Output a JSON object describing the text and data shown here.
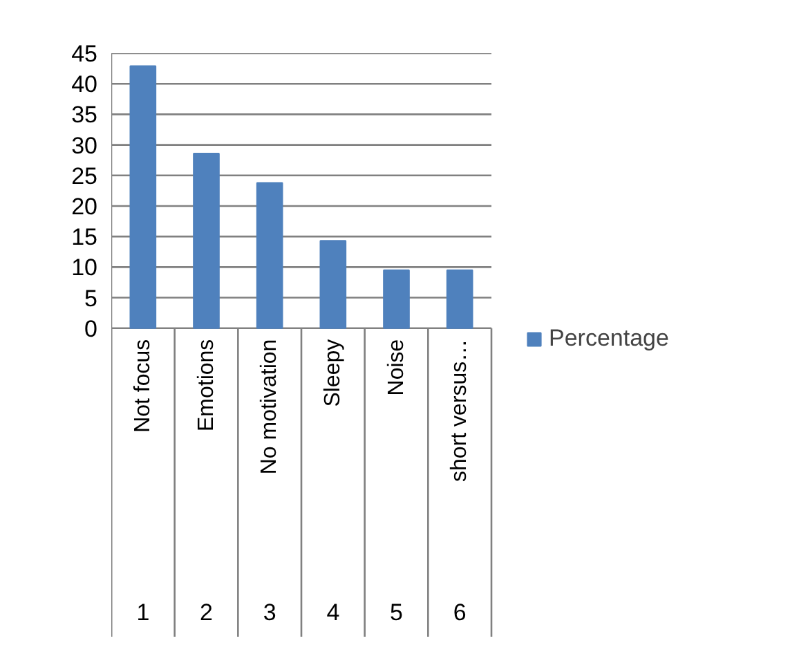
{
  "chart_data": {
    "type": "bar",
    "categories": [
      "Not focus",
      "Emotions",
      "No motivation",
      "Sleepy",
      "Noise",
      "short versus…"
    ],
    "series": [
      {
        "name": "Percentage",
        "color": "#4f81bd",
        "values": [
          42.9,
          28.6,
          23.8,
          14.3,
          9.5,
          9.5
        ]
      }
    ],
    "ylim": [
      0,
      45
    ],
    "yticks": [
      0,
      5,
      10,
      15,
      20,
      25,
      30,
      35,
      40,
      45
    ],
    "grid": "y",
    "legend": "right",
    "annotations": [
      "1",
      "2",
      "3",
      "4",
      "5",
      "6"
    ]
  }
}
